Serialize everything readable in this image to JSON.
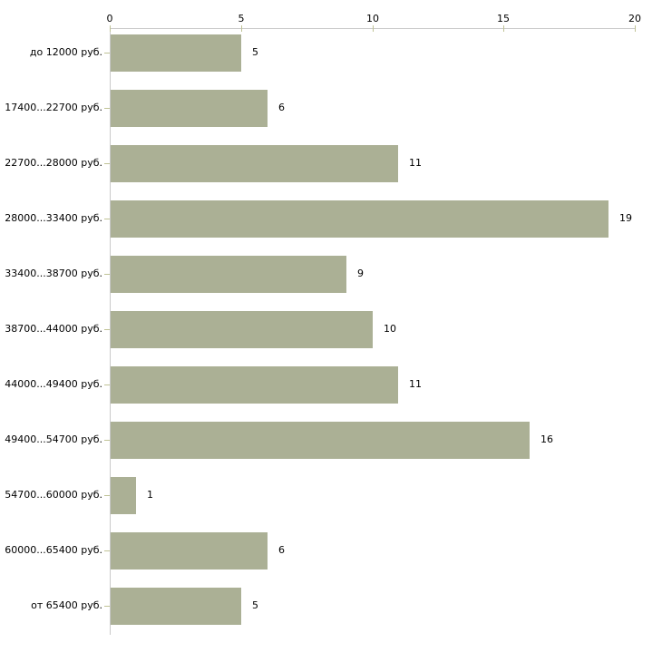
{
  "chart_data": {
    "type": "bar",
    "orientation": "horizontal",
    "title": "",
    "xlabel": "",
    "ylabel": "",
    "categories": [
      "до 12000 руб.",
      "17400...22700 руб.",
      "22700...28000 руб.",
      "28000...33400 руб.",
      "33400...38700 руб.",
      "38700...44000 руб.",
      "44000...49400 руб.",
      "49400...54700 руб.",
      "54700...60000 руб.",
      "60000...65400 руб.",
      "от 65400 руб."
    ],
    "values": [
      5,
      6,
      11,
      19,
      9,
      10,
      11,
      16,
      1,
      6,
      5
    ],
    "value_labels": [
      "5",
      "6",
      "11",
      "19",
      "9",
      "10",
      "11",
      "16",
      "1",
      "6",
      "5"
    ],
    "x_ticks": [
      0,
      5,
      10,
      15,
      20
    ],
    "x_tick_labels": [
      "0",
      "5",
      "10",
      "15",
      "20"
    ],
    "xlim": [
      0,
      20
    ],
    "grid": false,
    "legend": false,
    "axis_position": "top",
    "colors": {
      "bar": "#ABB095",
      "tick": "#C0C396",
      "axis_line": "#C9C9C9",
      "text": "#000000",
      "background": "#ffffff"
    }
  }
}
